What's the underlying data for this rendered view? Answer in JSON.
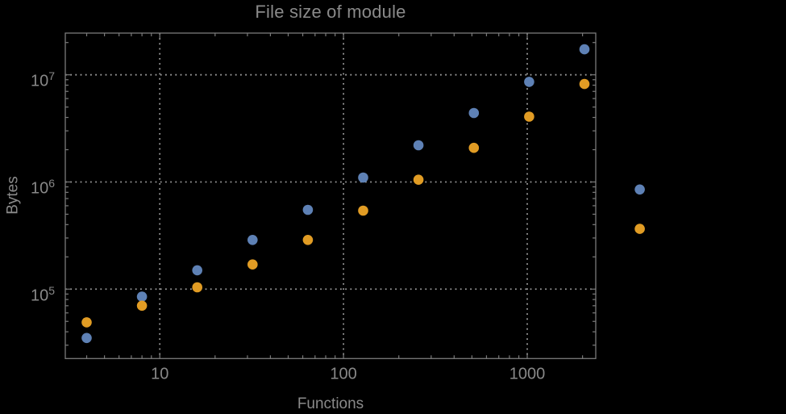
{
  "figure": {
    "background_color": "#000000"
  },
  "colors": {
    "frame": "#7a7a7a",
    "grid": "#9b9b9b",
    "title_text": "#8a8a8a",
    "axis_label_text": "#8a8a8a",
    "tick_label_text": "#888888",
    "series_blue": "#5e81b5",
    "series_orange": "#e19c24"
  },
  "chart_data": {
    "type": "scatter",
    "title": "File size of module",
    "xlabel": "Functions",
    "ylabel": "Bytes",
    "x_scale": "log",
    "y_scale": "log",
    "grid": "dotted lines at major decades only",
    "legend_position": "none",
    "xlim": [
      3.06,
      2360
    ],
    "ylim": [
      22500,
      24500000
    ],
    "x_major_ticks": [
      {
        "label": "10",
        "value": 10
      },
      {
        "label": "100",
        "value": 100
      },
      {
        "label": "1000",
        "value": 1000
      }
    ],
    "y_major_ticks": [
      {
        "mantissa": "10",
        "exponent": "5",
        "value": 100000
      },
      {
        "mantissa": "10",
        "exponent": "6",
        "value": 1000000
      },
      {
        "mantissa": "10",
        "exponent": "7",
        "value": 10000000
      }
    ],
    "x": [
      4,
      8,
      16,
      32,
      64,
      128,
      256,
      512,
      1024,
      2048,
      4096
    ],
    "series": [
      {
        "name": "blue",
        "color": "#5e81b5",
        "values": [
          35000,
          85000,
          150000,
          288000,
          550000,
          1100000,
          2200000,
          4400000,
          8600000,
          17300000,
          850000
        ]
      },
      {
        "name": "orange",
        "color": "#e19c24",
        "values": [
          49000,
          70000,
          104000,
          170000,
          288000,
          540000,
          1050000,
          2080000,
          4070000,
          8200000,
          365000
        ]
      }
    ],
    "notes": "the x=4096 pair of points is drawn outside (to the right of) the plot frame"
  }
}
